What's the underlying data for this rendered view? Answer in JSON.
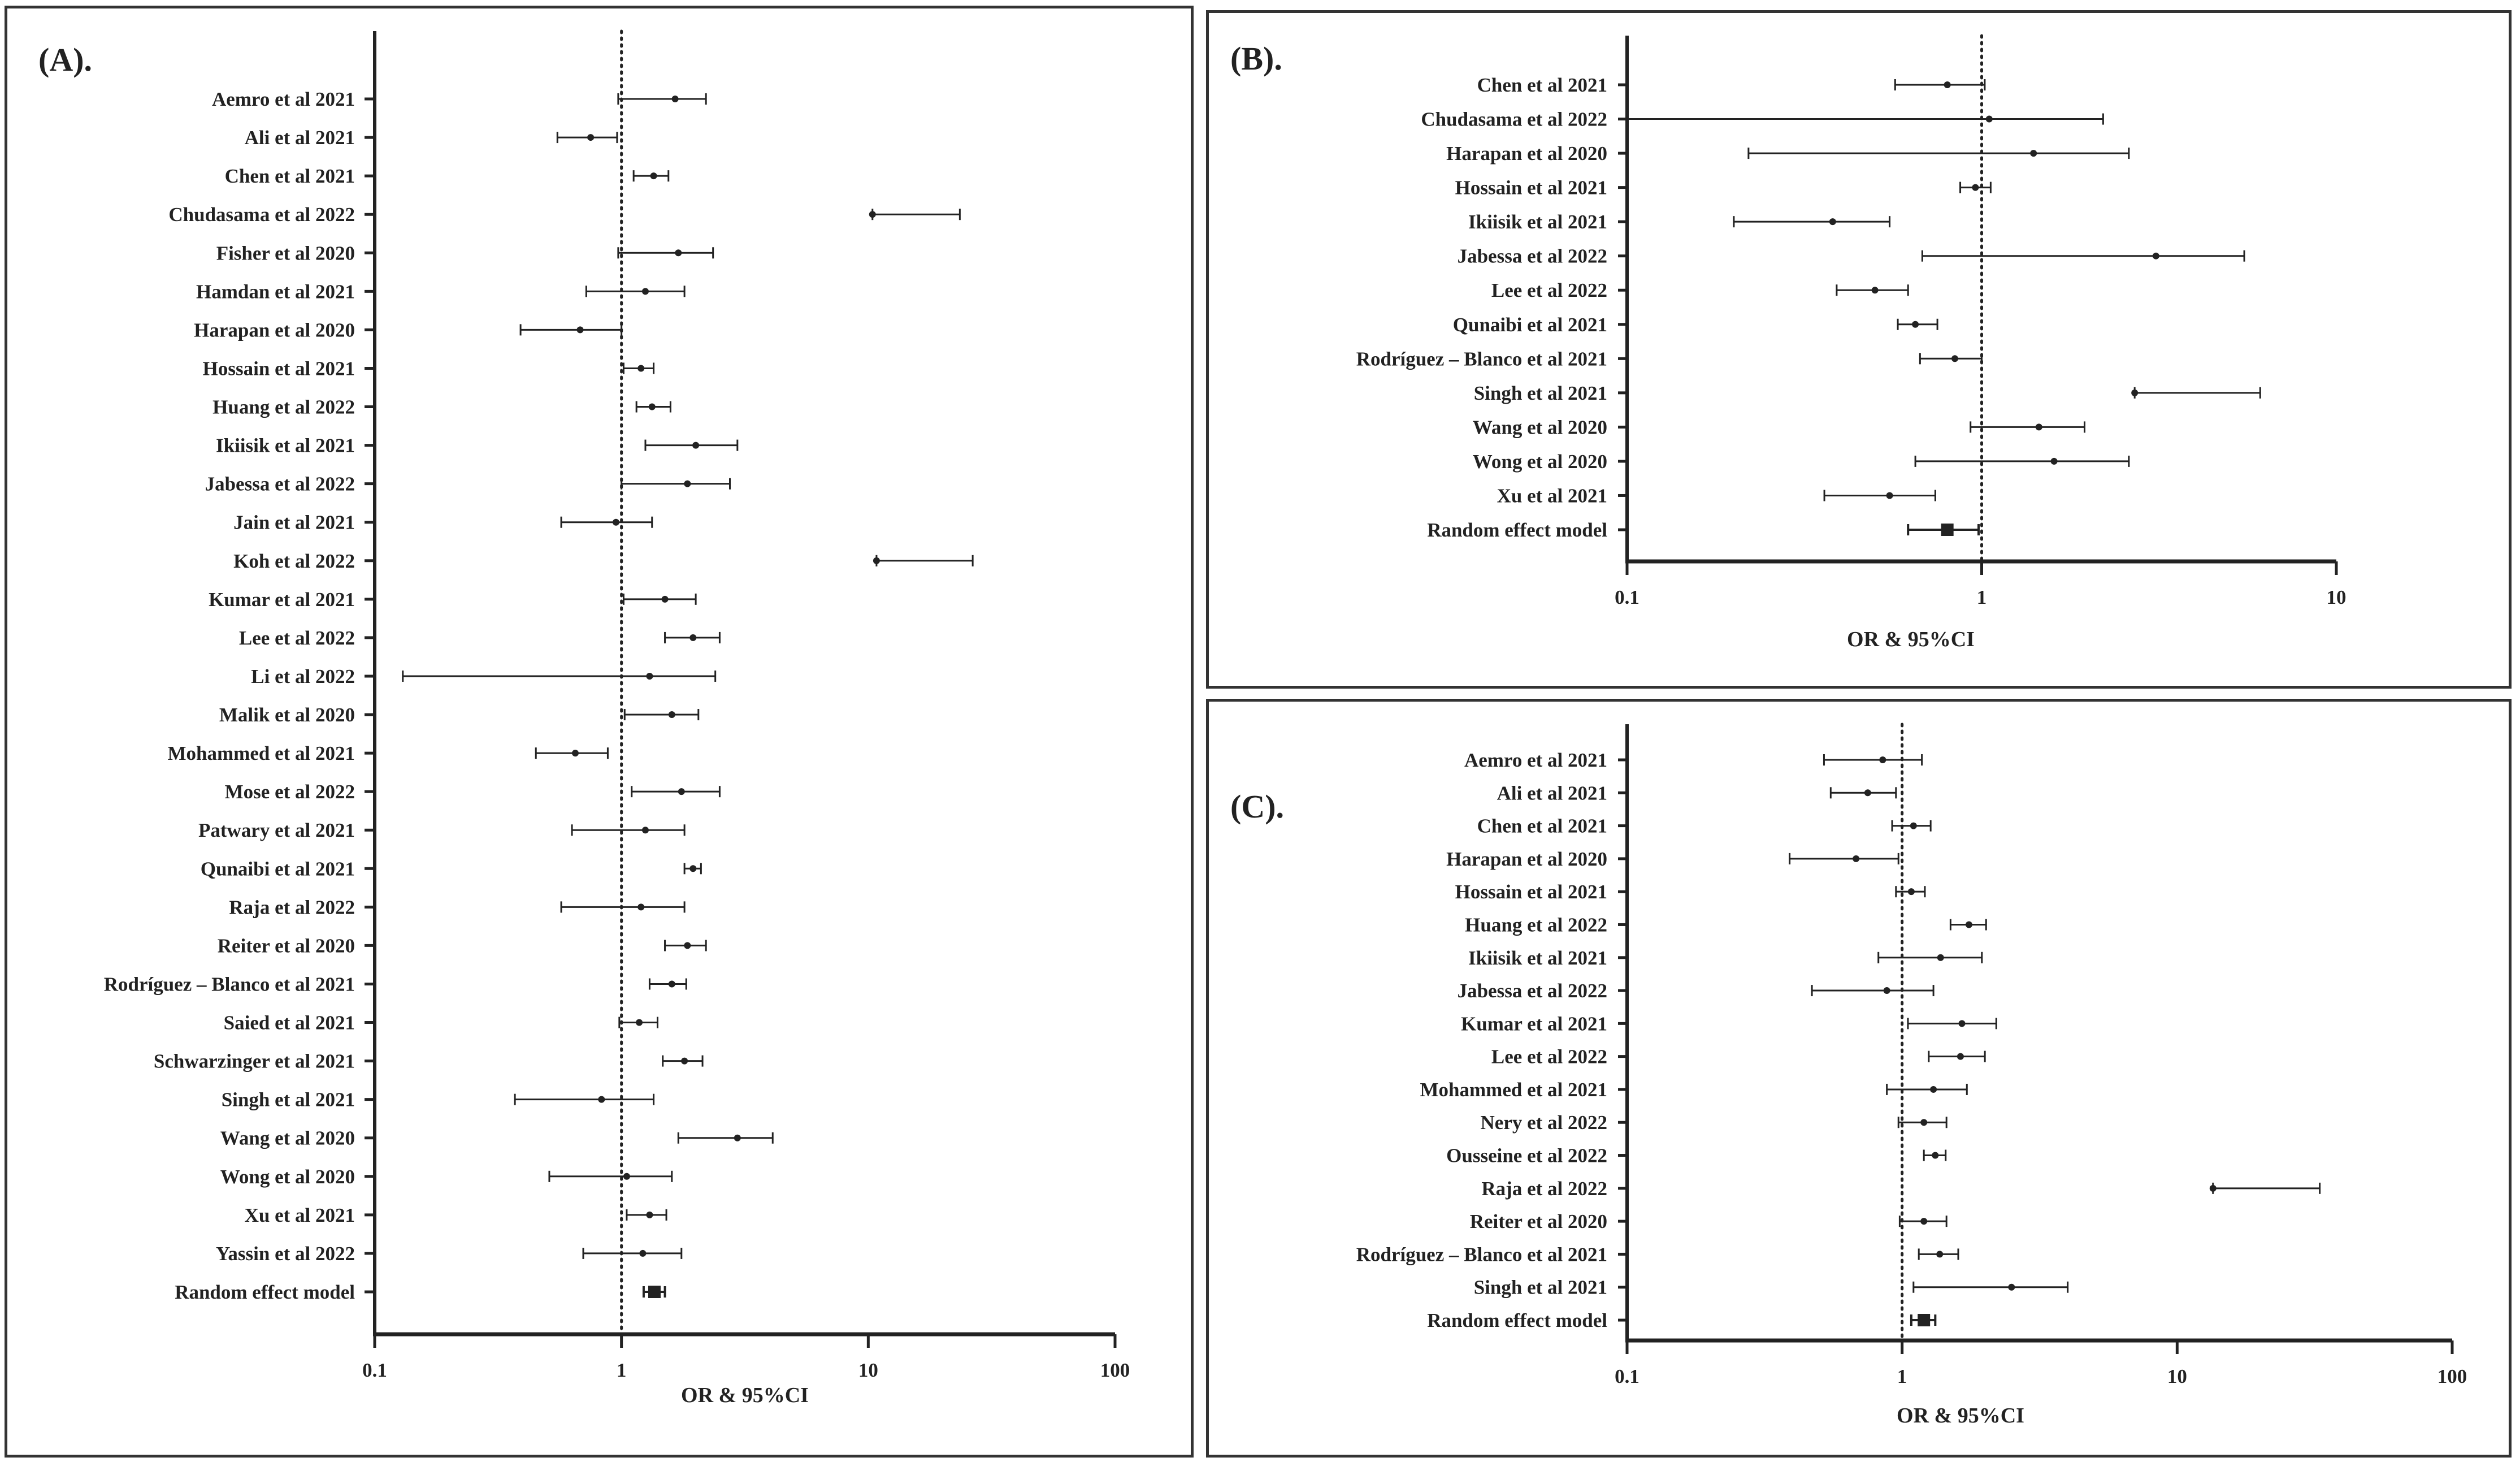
{
  "colors": {
    "ink": "#222222",
    "frame": "#333333",
    "background": "#ffffff"
  },
  "chart_data": [
    {
      "type": "forest",
      "panel_label": "(A).",
      "xlabel": "OR & 95%CI",
      "xscale": "log",
      "xlim": [
        0.1,
        100
      ],
      "xticks": [
        "0.1",
        "1",
        "10",
        "100"
      ],
      "reference_line": 1,
      "studies": [
        {
          "label": "Aemro et al 2021",
          "or": 1.65,
          "lo": 0.97,
          "hi": 2.2
        },
        {
          "label": "Ali et al 2021",
          "or": 0.75,
          "lo": 0.55,
          "hi": 0.96
        },
        {
          "label": "Chen et al 2021",
          "or": 1.35,
          "lo": 1.12,
          "hi": 1.55
        },
        {
          "label": "Chudasama et al 2022",
          "or": 10.4,
          "lo": 10.4,
          "hi": 23.5
        },
        {
          "label": "Fisher et al 2020",
          "or": 1.7,
          "lo": 0.97,
          "hi": 2.35
        },
        {
          "label": "Hamdan et al 2021",
          "or": 1.25,
          "lo": 0.72,
          "hi": 1.8
        },
        {
          "label": "Harapan et al 2020",
          "or": 0.68,
          "lo": 0.39,
          "hi": 1.0
        },
        {
          "label": "Hossain et al 2021",
          "or": 1.2,
          "lo": 1.02,
          "hi": 1.35
        },
        {
          "label": "Huang et al 2022",
          "or": 1.33,
          "lo": 1.15,
          "hi": 1.58
        },
        {
          "label": "Ikiisik et al 2021",
          "or": 2.0,
          "lo": 1.25,
          "hi": 2.95
        },
        {
          "label": "Jabessa et al 2022",
          "or": 1.85,
          "lo": 1.0,
          "hi": 2.75
        },
        {
          "label": "Jain et al 2021",
          "or": 0.95,
          "lo": 0.57,
          "hi": 1.33
        },
        {
          "label": "Koh et al 2022",
          "or": 10.8,
          "lo": 10.8,
          "hi": 26.5
        },
        {
          "label": "Kumar et al 2021",
          "or": 1.5,
          "lo": 1.02,
          "hi": 2.0
        },
        {
          "label": "Lee et al 2022",
          "or": 1.95,
          "lo": 1.5,
          "hi": 2.5
        },
        {
          "label": "Li et al 2022",
          "or": 1.3,
          "lo": 0.13,
          "hi": 2.4
        },
        {
          "label": "Malik et al 2020",
          "or": 1.6,
          "lo": 1.03,
          "hi": 2.05
        },
        {
          "label": "Mohammed et al 2021",
          "or": 0.65,
          "lo": 0.45,
          "hi": 0.88
        },
        {
          "label": "Mose et al 2022",
          "or": 1.75,
          "lo": 1.1,
          "hi": 2.5
        },
        {
          "label": "Patwary et al 2021",
          "or": 1.25,
          "lo": 0.63,
          "hi": 1.8
        },
        {
          "label": "Qunaibi et al 2021",
          "or": 1.95,
          "lo": 1.8,
          "hi": 2.1
        },
        {
          "label": "Raja et al 2022",
          "or": 1.2,
          "lo": 0.57,
          "hi": 1.8
        },
        {
          "label": "Reiter et al 2020",
          "or": 1.85,
          "lo": 1.5,
          "hi": 2.2
        },
        {
          "label": "Rodríguez – Blanco et al 2021",
          "or": 1.6,
          "lo": 1.3,
          "hi": 1.83
        },
        {
          "label": "Saied et al 2021",
          "or": 1.18,
          "lo": 0.98,
          "hi": 1.4
        },
        {
          "label": "Schwarzinger et al 2021",
          "or": 1.8,
          "lo": 1.47,
          "hi": 2.13
        },
        {
          "label": "Singh et al 2021",
          "or": 0.83,
          "lo": 0.37,
          "hi": 1.35
        },
        {
          "label": "Wang et al 2020",
          "or": 2.95,
          "lo": 1.7,
          "hi": 4.1
        },
        {
          "label": "Wong et al 2020",
          "or": 1.05,
          "lo": 0.51,
          "hi": 1.6
        },
        {
          "label": "Xu et al 2021",
          "or": 1.3,
          "lo": 1.05,
          "hi": 1.52
        },
        {
          "label": "Yassin et al 2022",
          "or": 1.22,
          "lo": 0.7,
          "hi": 1.75
        },
        {
          "label": "Random effect model",
          "or": 1.36,
          "lo": 1.23,
          "hi": 1.5,
          "pooled": true
        }
      ]
    },
    {
      "type": "forest",
      "panel_label": "(B).",
      "xlabel": "OR & 95%CI",
      "xscale": "log",
      "xlim": [
        0.1,
        10
      ],
      "xticks": [
        "0.1",
        "1",
        "10"
      ],
      "reference_line": 1,
      "studies": [
        {
          "label": "Chen et al 2021",
          "or": 0.8,
          "lo": 0.57,
          "hi": 1.02
        },
        {
          "label": "Chudasama et al 2022",
          "or": 1.05,
          "lo": 0.1,
          "hi": 2.2
        },
        {
          "label": "Harapan et al 2020",
          "or": 1.4,
          "lo": 0.22,
          "hi": 2.6
        },
        {
          "label": "Hossain et al 2021",
          "or": 0.96,
          "lo": 0.87,
          "hi": 1.06
        },
        {
          "label": "Ikiisik et al 2021",
          "or": 0.38,
          "lo": 0.2,
          "hi": 0.55
        },
        {
          "label": "Jabessa et al 2022",
          "or": 3.1,
          "lo": 0.68,
          "hi": 5.5
        },
        {
          "label": "Lee et al 2022",
          "or": 0.5,
          "lo": 0.39,
          "hi": 0.62
        },
        {
          "label": "Qunaibi et al 2021",
          "or": 0.65,
          "lo": 0.58,
          "hi": 0.75
        },
        {
          "label": "Rodríguez – Blanco et al 2021",
          "or": 0.84,
          "lo": 0.67,
          "hi": 1.0
        },
        {
          "label": "Singh et al 2021",
          "or": 2.7,
          "lo": 2.7,
          "hi": 6.1
        },
        {
          "label": "Wang et al 2020",
          "or": 1.45,
          "lo": 0.93,
          "hi": 1.95
        },
        {
          "label": "Wong et al 2020",
          "or": 1.6,
          "lo": 0.65,
          "hi": 2.6
        },
        {
          "label": "Xu et al 2021",
          "or": 0.55,
          "lo": 0.36,
          "hi": 0.74
        },
        {
          "label": "Random effect model",
          "or": 0.8,
          "lo": 0.62,
          "hi": 0.98,
          "pooled": true
        }
      ]
    },
    {
      "type": "forest",
      "panel_label": "(C).",
      "xlabel": "OR & 95%CI",
      "xscale": "log",
      "xlim": [
        0.1,
        100
      ],
      "xticks": [
        "0.1",
        "1",
        "10",
        "100"
      ],
      "reference_line": 1,
      "studies": [
        {
          "label": "Aemro et al 2021",
          "or": 0.85,
          "lo": 0.52,
          "hi": 1.18
        },
        {
          "label": "Ali et al 2021",
          "or": 0.75,
          "lo": 0.55,
          "hi": 0.95
        },
        {
          "label": "Chen et al 2021",
          "or": 1.1,
          "lo": 0.92,
          "hi": 1.27
        },
        {
          "label": "Harapan et al 2020",
          "or": 0.68,
          "lo": 0.39,
          "hi": 0.97
        },
        {
          "label": "Hossain et al 2021",
          "or": 1.08,
          "lo": 0.95,
          "hi": 1.21
        },
        {
          "label": "Huang et al 2022",
          "or": 1.75,
          "lo": 1.5,
          "hi": 2.02
        },
        {
          "label": "Ikiisik et al 2021",
          "or": 1.38,
          "lo": 0.82,
          "hi": 1.95
        },
        {
          "label": "Jabessa et al 2022",
          "or": 0.88,
          "lo": 0.47,
          "hi": 1.3
        },
        {
          "label": "Kumar et al 2021",
          "or": 1.65,
          "lo": 1.05,
          "hi": 2.2
        },
        {
          "label": "Lee et al 2022",
          "or": 1.63,
          "lo": 1.25,
          "hi": 2.0
        },
        {
          "label": "Mohammed et al 2021",
          "or": 1.3,
          "lo": 0.88,
          "hi": 1.72
        },
        {
          "label": "Nery et al 2022",
          "or": 1.2,
          "lo": 0.97,
          "hi": 1.45
        },
        {
          "label": "Ousseine et al 2022",
          "or": 1.32,
          "lo": 1.2,
          "hi": 1.44
        },
        {
          "label": "Raja et al 2022",
          "or": 13.5,
          "lo": 13.5,
          "hi": 33.0
        },
        {
          "label": "Reiter et al 2020",
          "or": 1.2,
          "lo": 0.98,
          "hi": 1.45
        },
        {
          "label": "Rodríguez – Blanco et al 2021",
          "or": 1.37,
          "lo": 1.15,
          "hi": 1.6
        },
        {
          "label": "Singh et al 2021",
          "or": 2.5,
          "lo": 1.1,
          "hi": 4.0
        },
        {
          "label": "Random effect model",
          "or": 1.2,
          "lo": 1.08,
          "hi": 1.32,
          "pooled": true
        }
      ]
    }
  ]
}
